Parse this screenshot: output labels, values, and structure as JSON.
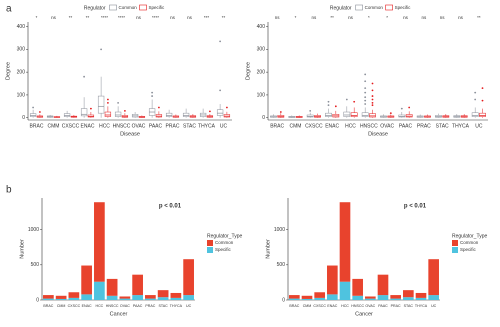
{
  "panel_labels": [
    "a",
    "b"
  ],
  "chart_data": [
    {
      "type": "box",
      "legend_title": "Regulator",
      "xlabel": "Disease",
      "ylabel": "Degree",
      "categories": [
        "BRAC",
        "CMM",
        "CXSCC",
        "ENAC",
        "HCC",
        "HNSCC",
        "OVAC",
        "PAAC",
        "PRAC",
        "STAC",
        "THYCA",
        "UC"
      ],
      "annotations": [
        "*",
        "ns",
        "**",
        "**",
        "****",
        "****",
        "ns",
        "****",
        "ns",
        "ns",
        "***",
        "**"
      ],
      "ylim": [
        -10,
        420
      ],
      "yticks": [
        0,
        100,
        200,
        300,
        400
      ],
      "series": [
        {
          "name": "Common",
          "color": "#8a8f99",
          "boxes": [
            [
              0,
              5,
              10,
              18,
              35
            ],
            [
              0,
              2,
              5,
              8,
              12
            ],
            [
              0,
              5,
              10,
              18,
              30
            ],
            [
              0,
              8,
              15,
              40,
              90
            ],
            [
              0,
              20,
              50,
              95,
              180
            ],
            [
              0,
              5,
              12,
              25,
              50
            ],
            [
              0,
              3,
              8,
              15,
              25
            ],
            [
              0,
              10,
              25,
              40,
              80
            ],
            [
              0,
              5,
              10,
              20,
              35
            ],
            [
              0,
              5,
              10,
              20,
              40
            ],
            [
              0,
              5,
              12,
              20,
              40
            ],
            [
              0,
              10,
              20,
              35,
              60
            ]
          ],
          "outliers": [
            [
              45
            ],
            [],
            [],
            [
              180
            ],
            [
              300
            ],
            [
              65
            ],
            [],
            [
              110,
              95
            ],
            [],
            [],
            [],
            [
              335,
              120
            ]
          ]
        },
        {
          "name": "Specific",
          "color": "#e41a1c",
          "boxes": [
            [
              0,
              2,
              4,
              8,
              15
            ],
            [
              0,
              1,
              3,
              5,
              8
            ],
            [
              0,
              2,
              4,
              7,
              12
            ],
            [
              0,
              3,
              6,
              12,
              25
            ],
            [
              0,
              5,
              12,
              25,
              50
            ],
            [
              0,
              2,
              5,
              10,
              20
            ],
            [
              0,
              1,
              3,
              6,
              10
            ],
            [
              0,
              3,
              7,
              14,
              28
            ],
            [
              0,
              2,
              4,
              8,
              14
            ],
            [
              0,
              2,
              5,
              9,
              16
            ],
            [
              0,
              2,
              5,
              9,
              16
            ],
            [
              0,
              3,
              7,
              14,
              26
            ]
          ],
          "outliers": [
            [
              25
            ],
            [],
            [],
            [
              40
            ],
            [
              80,
              65
            ],
            [
              30
            ],
            [],
            [
              45
            ],
            [],
            [],
            [
              28
            ],
            [
              45
            ]
          ]
        }
      ]
    },
    {
      "type": "box",
      "legend_title": "Regulator",
      "xlabel": "Disease",
      "ylabel": "Degree",
      "categories": [
        "BRAC",
        "CMM",
        "CXSCC",
        "ENAC",
        "HCC",
        "HNSCC",
        "OVAC",
        "PAAC",
        "PRAC",
        "STAC",
        "THYCA",
        "UC"
      ],
      "annotations": [
        "ns",
        "*",
        "ns",
        "**",
        "ns",
        "*",
        "*",
        "ns",
        "ns",
        "ns",
        "ns",
        "**"
      ],
      "ylim": [
        -10,
        420
      ],
      "yticks": [
        0,
        100,
        200,
        300,
        400
      ],
      "series": [
        {
          "name": "Common",
          "color": "#8a8f99",
          "boxes": [
            [
              0,
              2,
              4,
              8,
              15
            ],
            [
              0,
              1,
              3,
              6,
              10
            ],
            [
              0,
              3,
              6,
              12,
              22
            ],
            [
              0,
              5,
              10,
              20,
              40
            ],
            [
              0,
              5,
              12,
              25,
              50
            ],
            [
              0,
              5,
              10,
              22,
              45
            ],
            [
              0,
              2,
              4,
              8,
              15
            ],
            [
              0,
              3,
              6,
              12,
              25
            ],
            [
              0,
              2,
              4,
              8,
              14
            ],
            [
              0,
              2,
              5,
              10,
              18
            ],
            [
              0,
              2,
              5,
              9,
              16
            ],
            [
              0,
              5,
              10,
              22,
              45
            ]
          ],
          "outliers": [
            [],
            [],
            [
              30
            ],
            [
              70,
              55
            ],
            [
              80
            ],
            [
              190,
              160,
              130,
              110,
              90,
              75,
              60
            ],
            [],
            [
              40
            ],
            [],
            [],
            [],
            [
              110,
              80
            ]
          ]
        },
        {
          "name": "Specific",
          "color": "#e41a1c",
          "boxes": [
            [
              0,
              2,
              5,
              10,
              20
            ],
            [
              0,
              1,
              3,
              6,
              10
            ],
            [
              0,
              2,
              5,
              10,
              18
            ],
            [
              0,
              3,
              8,
              15,
              30
            ],
            [
              0,
              5,
              10,
              22,
              45
            ],
            [
              0,
              3,
              8,
              18,
              35
            ],
            [
              0,
              2,
              4,
              8,
              14
            ],
            [
              0,
              3,
              7,
              14,
              28
            ],
            [
              0,
              2,
              4,
              8,
              14
            ],
            [
              0,
              2,
              5,
              9,
              16
            ],
            [
              0,
              2,
              5,
              9,
              16
            ],
            [
              0,
              5,
              10,
              20,
              40
            ]
          ],
          "outliers": [
            [
              25
            ],
            [],
            [],
            [
              50
            ],
            [
              70
            ],
            [
              150,
              120,
              95,
              80,
              65,
              55
            ],
            [
              20
            ],
            [
              45
            ],
            [],
            [],
            [],
            [
              130,
              75
            ]
          ]
        }
      ]
    },
    {
      "type": "stacked_bar",
      "legend_title": "Regulator_Type",
      "xlabel": "Cancer",
      "ylabel": "Number",
      "annotation": "p < 0.01",
      "categories": [
        "BRAC",
        "CMM",
        "CXSCC",
        "ENAC",
        "HCC",
        "HNSCC",
        "OVAC",
        "PAAC",
        "PRAC",
        "STAC",
        "THYCA",
        "UC"
      ],
      "ylim": [
        0,
        1450
      ],
      "yticks": [
        0,
        500,
        1000
      ],
      "series": [
        {
          "name": "Common",
          "color": "#e8432d",
          "values": [
            50,
            45,
            80,
            410,
            1130,
            240,
            30,
            290,
            50,
            100,
            70,
            510
          ]
        },
        {
          "name": "Specific",
          "color": "#4fc3df",
          "values": [
            20,
            15,
            30,
            80,
            260,
            60,
            20,
            70,
            20,
            40,
            30,
            70
          ]
        }
      ]
    },
    {
      "type": "stacked_bar",
      "legend_title": "Regulator_Type",
      "xlabel": "Cancer",
      "ylabel": "Number",
      "annotation": "p < 0.01",
      "categories": [
        "BRAC",
        "CMM",
        "CXSCC",
        "ENAC",
        "HCC",
        "HNSCC",
        "OVAC",
        "PAAC",
        "PRAC",
        "STAC",
        "THYCA",
        "UC"
      ],
      "ylim": [
        0,
        1450
      ],
      "yticks": [
        0,
        500,
        1000
      ],
      "series": [
        {
          "name": "Common",
          "color": "#e8432d",
          "values": [
            50,
            45,
            80,
            410,
            1130,
            240,
            30,
            290,
            50,
            100,
            70,
            510
          ]
        },
        {
          "name": "Specific",
          "color": "#4fc3df",
          "values": [
            20,
            15,
            30,
            80,
            260,
            60,
            20,
            70,
            20,
            40,
            30,
            70
          ]
        }
      ]
    }
  ]
}
